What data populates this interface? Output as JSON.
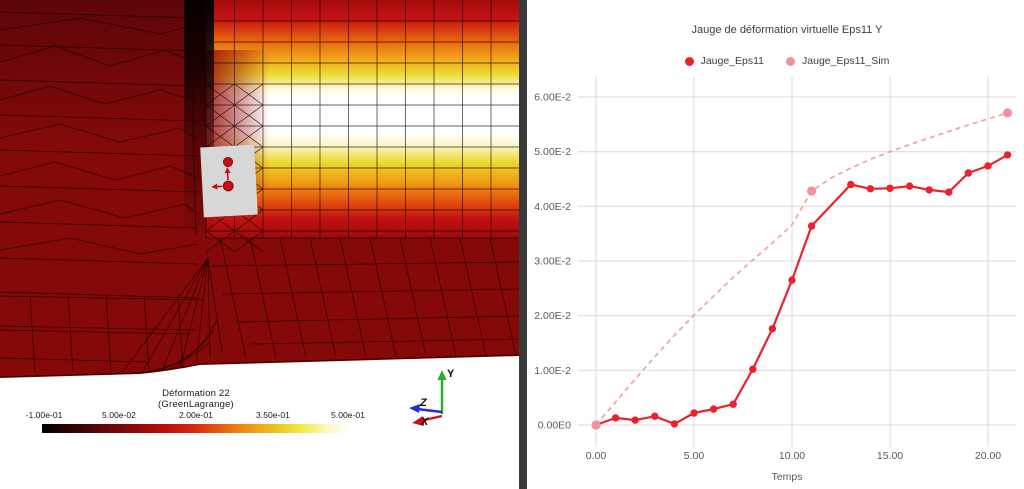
{
  "left_view": {
    "colorbar": {
      "title_line1": "Déformation 22",
      "title_line2": "(GreenLagrange)",
      "tick_labels": [
        "-1.00e-01",
        "5.00e-02",
        "2.00e-01",
        "3.50e-01",
        "5.00e-01"
      ]
    },
    "axis_triad": {
      "y_label": "Y",
      "z_label": "Z",
      "x_label": "X"
    }
  },
  "chart_data": {
    "type": "line",
    "title": "Jauge de déformation virtuelle Eps11 Y",
    "xlabel": "Temps",
    "ylabel": "",
    "grid": true,
    "legend_position": "top",
    "xlim": [
      -1.2,
      22
    ],
    "ylim": [
      0,
      0.065
    ],
    "x_axis": {
      "tick_values": [
        0,
        5,
        10,
        15,
        20
      ],
      "tick_labels": [
        "0.00",
        "5.00",
        "10.00",
        "15.00",
        "20.00"
      ]
    },
    "y_axis": {
      "tick_values": [
        0,
        0.01,
        0.02,
        0.03,
        0.04,
        0.05,
        0.06
      ],
      "tick_labels": [
        "0.00E0",
        "1.00E-2",
        "2.00E-2",
        "3.00E-2",
        "4.00E-2",
        "5.00E-2",
        "6.00E-2"
      ]
    },
    "series": [
      {
        "name": "Jauge_Eps11",
        "color": "#e8222f",
        "marker_color": "#e8222f",
        "style": "solid",
        "marker": "all",
        "x": [
          0,
          1,
          2,
          3,
          4,
          5,
          6,
          7,
          8,
          9,
          10,
          11,
          13,
          14,
          15,
          16,
          17,
          18,
          19,
          20,
          21
        ],
        "y": [
          0.0,
          0.0013,
          0.0009,
          0.0016,
          0.0002,
          0.0022,
          0.0029,
          0.0038,
          0.0102,
          0.0176,
          0.0265,
          0.0364,
          0.044,
          0.0432,
          0.0433,
          0.0437,
          0.043,
          0.0426,
          0.0461,
          0.0474,
          0.0494
        ]
      },
      {
        "name": "Jauge_Eps11_Sim",
        "color": "#f5a5a8",
        "marker_color": "#f1929b",
        "style": "dashed",
        "marker": "subset",
        "marker_x": [
          0,
          11,
          21
        ],
        "x": [
          0,
          1,
          2,
          3,
          4,
          5,
          6,
          7,
          8,
          9,
          10,
          11,
          12,
          13,
          14,
          15,
          16,
          17,
          18,
          19,
          20,
          21
        ],
        "y": [
          0.0,
          0.0042,
          0.0084,
          0.0125,
          0.0164,
          0.0201,
          0.0236,
          0.027,
          0.0302,
          0.0333,
          0.0366,
          0.0428,
          0.0452,
          0.047,
          0.0486,
          0.05,
          0.0513,
          0.0525,
          0.0537,
          0.0549,
          0.056,
          0.0571
        ]
      }
    ]
  }
}
